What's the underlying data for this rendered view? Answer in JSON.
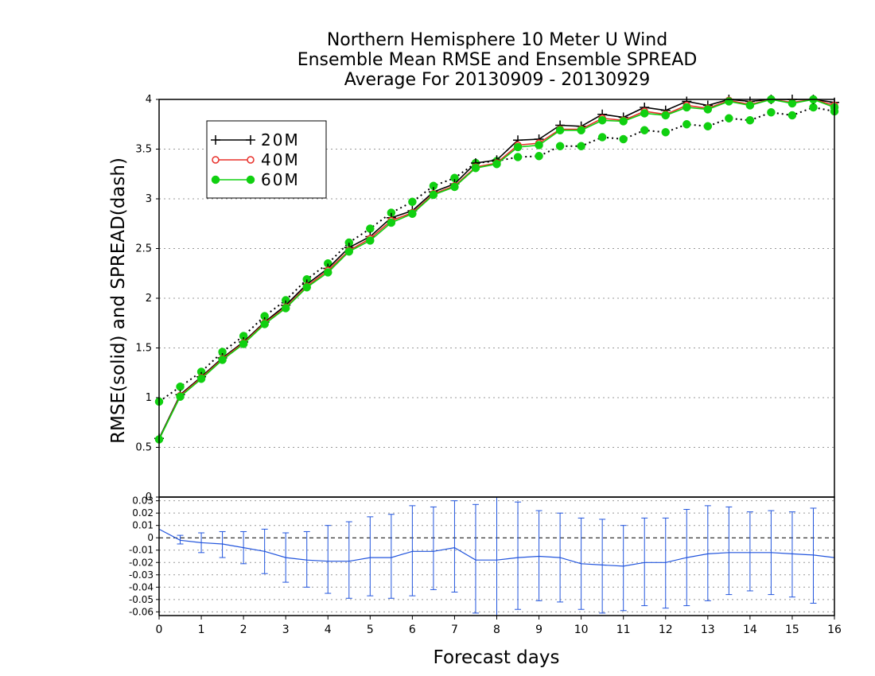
{
  "chart_data": [
    {
      "type": "line",
      "title_lines": [
        "Northern Hemisphere 10 Meter U Wind",
        "Ensemble Mean RMSE and Ensemble SPREAD",
        "Average For 20130909 - 20130929"
      ],
      "ylabel": "RMSE(solid)  and  SPREAD(dash)",
      "xlim": [
        0,
        16
      ],
      "ylim": [
        0,
        4
      ],
      "yticks": [
        0,
        0.5,
        1,
        1.5,
        2,
        2.5,
        3,
        3.5,
        4
      ],
      "ytick_labels": [
        "0",
        "0.5",
        "1",
        "1.5",
        "2",
        "2.5",
        "3",
        "3.5",
        "4"
      ],
      "grid": true,
      "legend_position": "top-left",
      "x": [
        0,
        0.5,
        1,
        1.5,
        2,
        2.5,
        3,
        3.5,
        4,
        4.5,
        5,
        5.5,
        6,
        6.5,
        7,
        7.5,
        8,
        8.5,
        9,
        9.5,
        10,
        10.5,
        11,
        11.5,
        12,
        12.5,
        13,
        13.5,
        14,
        14.5,
        15,
        15.5,
        16
      ],
      "series": [
        {
          "name": "20M",
          "color": "#000000",
          "marker": "plus",
          "style": "solid",
          "values": [
            0.59,
            1.03,
            1.21,
            1.4,
            1.56,
            1.76,
            1.93,
            2.14,
            2.3,
            2.51,
            2.62,
            2.81,
            2.88,
            3.07,
            3.15,
            3.36,
            3.39,
            3.59,
            3.6,
            3.74,
            3.73,
            3.85,
            3.82,
            3.92,
            3.89,
            3.98,
            3.94,
            4.02,
            3.98,
            4.04,
            4.0,
            4.05,
            3.97
          ]
        },
        {
          "name": "40M",
          "color": "#e8302a",
          "marker": "circle-open",
          "style": "solid",
          "values": [
            0.58,
            1.02,
            1.2,
            1.39,
            1.55,
            1.75,
            1.91,
            2.12,
            2.28,
            2.48,
            2.6,
            2.78,
            2.86,
            3.05,
            3.13,
            3.32,
            3.36,
            3.54,
            3.56,
            3.7,
            3.7,
            3.81,
            3.79,
            3.88,
            3.85,
            3.94,
            3.91,
            3.99,
            3.95,
            4.01,
            3.97,
            4.02,
            3.94
          ]
        },
        {
          "name": "60M",
          "color": "#10d010",
          "marker": "circle-filled",
          "style": "solid",
          "values": [
            0.58,
            1.01,
            1.19,
            1.38,
            1.54,
            1.74,
            1.9,
            2.11,
            2.26,
            2.47,
            2.58,
            2.76,
            2.85,
            3.04,
            3.12,
            3.31,
            3.35,
            3.52,
            3.54,
            3.69,
            3.69,
            3.79,
            3.78,
            3.86,
            3.84,
            3.92,
            3.9,
            3.98,
            3.94,
            4.0,
            3.96,
            4.01,
            3.92
          ]
        },
        {
          "name": "SPREAD",
          "color": "#10d010",
          "marker": "circle-filled",
          "style": "dotted",
          "values": [
            0.96,
            1.11,
            1.26,
            1.46,
            1.62,
            1.82,
            1.98,
            2.19,
            2.35,
            2.56,
            2.7,
            2.86,
            2.97,
            3.13,
            3.21,
            3.36,
            3.38,
            3.42,
            3.43,
            3.53,
            3.53,
            3.62,
            3.6,
            3.69,
            3.67,
            3.75,
            3.73,
            3.81,
            3.79,
            3.87,
            3.84,
            3.92,
            3.88
          ]
        }
      ]
    },
    {
      "type": "line",
      "xlabel": "Forecast days",
      "xlim": [
        0,
        16
      ],
      "ylim": [
        -0.063,
        0.033
      ],
      "xticks": [
        0,
        1,
        2,
        3,
        4,
        5,
        6,
        7,
        8,
        9,
        10,
        11,
        12,
        13,
        14,
        15,
        16
      ],
      "xtick_labels": [
        "0",
        "1",
        "2",
        "3",
        "4",
        "5",
        "6",
        "7",
        "8",
        "9",
        "10",
        "11",
        "12",
        "13",
        "14",
        "15",
        "16"
      ],
      "yticks": [
        0.03,
        0.02,
        0.01,
        0,
        -0.01,
        -0.02,
        -0.03,
        -0.04,
        -0.05,
        -0.06
      ],
      "ytick_labels": [
        "0.03",
        "0.02",
        "0.01",
        "0",
        "-0.01",
        "-0.02",
        "-0.03",
        "-0.04",
        "-0.05",
        "-0.06"
      ],
      "grid": true,
      "x": [
        0,
        0.5,
        1,
        1.5,
        2,
        2.5,
        3,
        3.5,
        4,
        4.5,
        5,
        5.5,
        6,
        6.5,
        7,
        7.5,
        8,
        8.5,
        9,
        9.5,
        10,
        10.5,
        11,
        11.5,
        12,
        12.5,
        13,
        13.5,
        14,
        14.5,
        15,
        15.5,
        16
      ],
      "series": [
        {
          "color": "#2255dd",
          "values": [
            0.007,
            -0.002,
            -0.004,
            -0.005,
            -0.008,
            -0.011,
            -0.016,
            -0.018,
            -0.019,
            -0.019,
            -0.016,
            -0.016,
            -0.011,
            -0.011,
            -0.008,
            -0.018,
            -0.018,
            -0.016,
            -0.015,
            -0.016,
            -0.021,
            -0.022,
            -0.023,
            -0.02,
            -0.02,
            -0.016,
            -0.013,
            -0.012,
            -0.012,
            -0.012,
            -0.013,
            -0.014,
            -0.016
          ],
          "error_low": [
            null,
            -0.005,
            -0.012,
            -0.016,
            -0.021,
            -0.029,
            -0.036,
            -0.04,
            -0.045,
            -0.049,
            -0.047,
            -0.049,
            -0.047,
            -0.042,
            -0.044,
            -0.061,
            -0.064,
            -0.058,
            -0.051,
            -0.052,
            -0.058,
            -0.061,
            -0.059,
            -0.055,
            -0.057,
            -0.055,
            -0.051,
            -0.046,
            -0.043,
            -0.046,
            -0.048,
            -0.053,
            null
          ],
          "error_high": [
            null,
            0.002,
            0.004,
            0.005,
            0.005,
            0.007,
            0.004,
            0.005,
            0.01,
            0.013,
            0.017,
            0.019,
            0.026,
            0.025,
            0.03,
            0.027,
            0.033,
            0.029,
            0.022,
            0.02,
            0.016,
            0.015,
            0.01,
            0.016,
            0.016,
            0.023,
            0.026,
            0.025,
            0.021,
            0.022,
            0.021,
            0.024,
            null
          ]
        }
      ]
    }
  ]
}
